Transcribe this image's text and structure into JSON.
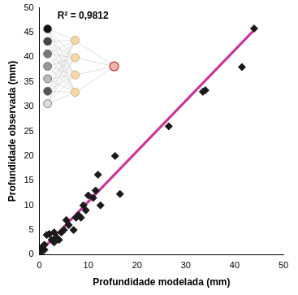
{
  "chart_data": {
    "type": "scatter",
    "x_label": "Profundidade modelada (mm)",
    "y_label": "Profundidade observada (mm)",
    "annotations": [
      {
        "text": "R² = 0,9812"
      }
    ],
    "xlim": [
      0,
      50
    ],
    "xticks": [
      0,
      10,
      20,
      30,
      40,
      50
    ],
    "ylim": [
      0,
      50
    ],
    "yticks": [
      0,
      5,
      10,
      15,
      20,
      25,
      30,
      35,
      40,
      45,
      50
    ],
    "grid": false,
    "series": [
      {
        "type": "scatter",
        "marker": "diamond",
        "color": "#1a1a1a",
        "x": [
          0,
          0.3,
          0.5,
          1,
          1,
          1.5,
          2,
          2.5,
          3,
          3,
          3.5,
          4,
          4.5,
          5,
          5.5,
          6,
          7,
          7.5,
          8,
          8.5,
          9,
          9.5,
          10,
          11,
          11.5,
          12,
          12.5,
          15.5,
          16.5,
          26.5,
          33.5,
          34,
          41.5,
          44
        ],
        "values": [
          0.5,
          0,
          1.5,
          1,
          2,
          4,
          4.2,
          3,
          4.5,
          2.5,
          3.5,
          3,
          4.5,
          5,
          7,
          6,
          5,
          7.5,
          8,
          7.5,
          10,
          9,
          12,
          11.5,
          13,
          16.2,
          10,
          20,
          12.3,
          26,
          33,
          33.3,
          38,
          45.8
        ]
      },
      {
        "type": "line",
        "line_style": "solid",
        "color": "#cc3399",
        "x": [
          0,
          44.5
        ],
        "values": [
          0.5,
          46
        ]
      }
    ]
  }
}
